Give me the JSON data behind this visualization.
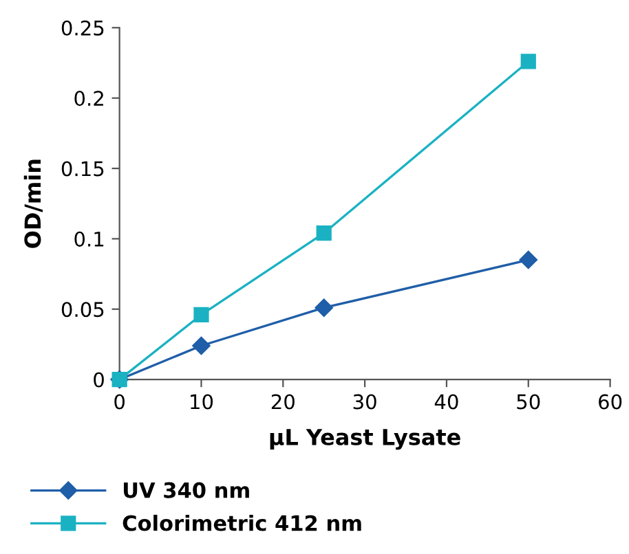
{
  "chart_data": {
    "type": "line",
    "xlabel": "μL Yeast Lysate",
    "ylabel": "OD/min",
    "xlim": [
      0,
      60
    ],
    "ylim": [
      0,
      0.25
    ],
    "xticks": [
      0,
      10,
      20,
      30,
      40,
      50,
      60
    ],
    "yticks": [
      0,
      0.05,
      0.1,
      0.15,
      0.2,
      0.25
    ],
    "grid": false,
    "legend": "bottom",
    "line_style": "solid",
    "series": [
      {
        "name": "UV 340 nm",
        "color": "#1f5ea8",
        "marker": "diamond",
        "x": [
          0,
          10,
          25,
          50
        ],
        "values": [
          0,
          0.024,
          0.051,
          0.085
        ]
      },
      {
        "name": "Colorimetric 412 nm",
        "color": "#1ab2c2",
        "marker": "square",
        "x": [
          0,
          10,
          25,
          50
        ],
        "values": [
          0,
          0.046,
          0.104,
          0.226
        ]
      }
    ]
  }
}
